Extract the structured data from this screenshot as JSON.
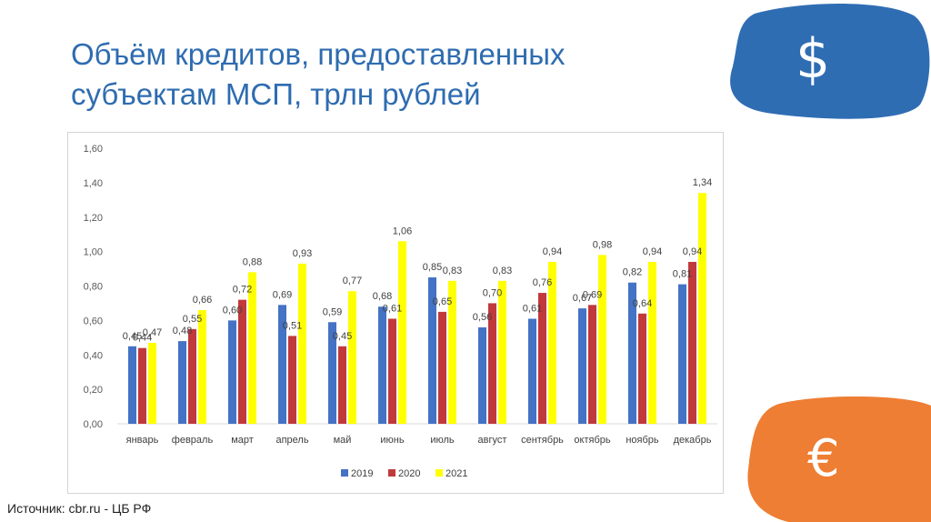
{
  "title_line1": "Объём кредитов, предоставленных",
  "title_line2": "субъектам МСП, трлн рублей",
  "source": "Источник: cbr.ru - ЦБ РФ",
  "icons": {
    "usd": "$",
    "eur": "€"
  },
  "colors": {
    "title": "#2e6cb0",
    "blob_usd": "#2f6db3",
    "blob_eur": "#ee7e33"
  },
  "chart_data": {
    "type": "bar",
    "categories": [
      "январь",
      "февраль",
      "март",
      "апрель",
      "май",
      "июнь",
      "июль",
      "август",
      "сентябрь",
      "октябрь",
      "ноябрь",
      "декабрь"
    ],
    "series": [
      {
        "name": "2019",
        "color": "#4472c4",
        "values": [
          0.45,
          0.48,
          0.6,
          0.69,
          0.59,
          0.68,
          0.85,
          0.56,
          0.61,
          0.67,
          0.82,
          0.81
        ],
        "labels": [
          "0,45",
          "0,48",
          "0,60",
          "0,69",
          "0,59",
          "0,68",
          "0,85",
          "0,56",
          "0,61",
          "0,67",
          "0,82",
          "0,81"
        ]
      },
      {
        "name": "2020",
        "color": "#c0393b",
        "values": [
          0.44,
          0.55,
          0.72,
          0.51,
          0.45,
          0.61,
          0.65,
          0.7,
          0.76,
          0.69,
          0.64,
          0.94
        ],
        "labels": [
          "0,44",
          "0,55",
          "0,72",
          "0,51",
          "0,45",
          "0,61",
          "0,65",
          "0,70",
          "0,76",
          "0,69",
          "0,64",
          "0,94"
        ]
      },
      {
        "name": "2021",
        "color": "#ffff00",
        "values": [
          0.47,
          0.66,
          0.88,
          0.93,
          0.77,
          1.06,
          0.83,
          0.83,
          0.94,
          0.98,
          0.94,
          1.34
        ],
        "labels": [
          "0,47",
          "0,66",
          "0,88",
          "0,93",
          "0,77",
          "1,06",
          "0,83",
          "0,83",
          "0,94",
          "0,98",
          "0,94",
          "1,34"
        ]
      }
    ],
    "yticks": [
      "0,00",
      "0,20",
      "0,40",
      "0,60",
      "0,80",
      "1,00",
      "1,20",
      "1,40",
      "1,60"
    ],
    "ylim": [
      0,
      1.6
    ],
    "grid": false,
    "legend": "bottom"
  }
}
